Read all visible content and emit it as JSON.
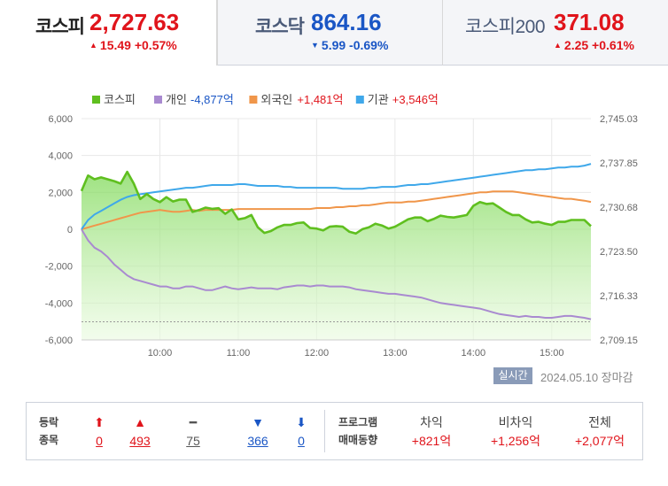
{
  "indices": [
    {
      "name": "코스피",
      "price": "2,727.63",
      "change": "15.49 +0.57%",
      "direction": "up"
    },
    {
      "name": "코스닥",
      "price": "864.16",
      "change": "5.99 -0.69%",
      "direction": "down"
    },
    {
      "name": "코스피200",
      "price": "371.08",
      "change": "2.25 +0.61%",
      "direction": "up"
    }
  ],
  "legend": [
    {
      "label": "코스피",
      "value": "",
      "color": "#5fbf1f"
    },
    {
      "label": "개인",
      "value": "-4,877억",
      "color": "#a98ad0"
    },
    {
      "label": "외국인",
      "value": "+1,481억",
      "color": "#f0964a"
    },
    {
      "label": "기관",
      "value": "+3,546억",
      "color": "#3fa8ea"
    }
  ],
  "status_badge": "실시간",
  "datetime": "2024.05.10 장마감",
  "market_stats": {
    "label_line1": "등락",
    "label_line2": "종목",
    "items": [
      {
        "icon": "⬆",
        "value": "0",
        "color": "#e0141b"
      },
      {
        "icon": "▲",
        "value": "493",
        "color": "#e0141b"
      },
      {
        "icon": "━",
        "value": "75",
        "color": "#555555"
      },
      {
        "icon": "▼",
        "value": "366",
        "color": "#1a56c5"
      },
      {
        "icon": "⬇",
        "value": "0",
        "color": "#1a56c5"
      }
    ]
  },
  "program_trading": {
    "label_line1": "프로그램",
    "label_line2": "매매동향",
    "items": [
      {
        "header": "차익",
        "value": "+821억"
      },
      {
        "header": "비차익",
        "value": "+1,256억"
      },
      {
        "header": "전체",
        "value": "+2,077억"
      }
    ]
  },
  "chart_data": {
    "type": "line",
    "x_ticks": [
      "10:00",
      "11:00",
      "12:00",
      "13:00",
      "14:00",
      "15:00"
    ],
    "x_range": [
      "09:00",
      "15:30"
    ],
    "y_left_ticks": [
      "6,000",
      "4,000",
      "2,000",
      "0",
      "-2,000",
      "-4,000",
      "-6,000"
    ],
    "y_left_range": [
      -6000,
      6000
    ],
    "y_right_ticks": [
      "2,745.03",
      "2,737.85",
      "2,730.68",
      "2,723.50",
      "2,716.33",
      "2,709.15"
    ],
    "y_right_range": [
      2709.15,
      2745.03
    ],
    "x": [
      "09:00",
      "09:05",
      "09:10",
      "09:15",
      "09:20",
      "09:25",
      "09:30",
      "09:35",
      "09:40",
      "09:45",
      "09:50",
      "09:55",
      "10:00",
      "10:05",
      "10:10",
      "10:15",
      "10:20",
      "10:25",
      "10:30",
      "10:35",
      "10:40",
      "10:45",
      "10:50",
      "10:55",
      "11:00",
      "11:05",
      "11:10",
      "11:15",
      "11:20",
      "11:25",
      "11:30",
      "11:35",
      "11:40",
      "11:45",
      "11:50",
      "11:55",
      "12:00",
      "12:05",
      "12:10",
      "12:15",
      "12:20",
      "12:25",
      "12:30",
      "12:35",
      "12:40",
      "12:45",
      "12:50",
      "12:55",
      "13:00",
      "13:05",
      "13:10",
      "13:15",
      "13:20",
      "13:25",
      "13:30",
      "13:35",
      "13:40",
      "13:45",
      "13:50",
      "13:55",
      "14:00",
      "14:05",
      "14:10",
      "14:15",
      "14:20",
      "14:25",
      "14:30",
      "14:35",
      "14:40",
      "14:45",
      "14:50",
      "14:55",
      "15:00",
      "15:05",
      "15:10",
      "15:15",
      "15:20",
      "15:25",
      "15:30"
    ],
    "series": [
      {
        "name": "코스피",
        "axis": "right",
        "values": [
          2733.3,
          2735.8,
          2735.2,
          2735.5,
          2735.2,
          2734.9,
          2734.5,
          2736.4,
          2734.5,
          2732.0,
          2732.8,
          2732.0,
          2731.5,
          2732.3,
          2731.6,
          2731.9,
          2731.9,
          2729.9,
          2730.2,
          2730.6,
          2730.4,
          2730.5,
          2729.6,
          2730.3,
          2728.7,
          2728.9,
          2729.4,
          2727.4,
          2726.5,
          2726.8,
          2727.4,
          2727.8,
          2727.8,
          2728.1,
          2728.2,
          2727.3,
          2727.2,
          2726.9,
          2727.5,
          2727.6,
          2727.5,
          2726.7,
          2726.4,
          2727.1,
          2727.4,
          2728.0,
          2727.7,
          2727.2,
          2727.5,
          2728.1,
          2728.7,
          2729.0,
          2729.0,
          2728.4,
          2728.8,
          2729.3,
          2729.1,
          2729.0,
          2729.2,
          2729.4,
          2730.9,
          2731.5,
          2731.2,
          2731.3,
          2730.6,
          2729.9,
          2729.4,
          2729.4,
          2728.7,
          2728.2,
          2728.3,
          2728.0,
          2727.8,
          2728.3,
          2728.3,
          2728.6,
          2728.6,
          2728.6,
          2727.6
        ]
      },
      {
        "name": "개인",
        "axis": "left",
        "values": [
          0,
          -600,
          -1000,
          -1200,
          -1500,
          -1900,
          -2200,
          -2500,
          -2700,
          -2800,
          -2900,
          -3000,
          -3100,
          -3100,
          -3200,
          -3200,
          -3100,
          -3100,
          -3200,
          -3300,
          -3300,
          -3200,
          -3100,
          -3200,
          -3250,
          -3200,
          -3150,
          -3200,
          -3200,
          -3200,
          -3250,
          -3150,
          -3100,
          -3050,
          -3050,
          -3100,
          -3050,
          -3050,
          -3100,
          -3100,
          -3100,
          -3150,
          -3250,
          -3300,
          -3350,
          -3400,
          -3450,
          -3500,
          -3500,
          -3550,
          -3600,
          -3650,
          -3700,
          -3800,
          -3900,
          -4000,
          -4050,
          -4100,
          -4150,
          -4200,
          -4250,
          -4300,
          -4400,
          -4500,
          -4600,
          -4650,
          -4700,
          -4750,
          -4700,
          -4750,
          -4750,
          -4800,
          -4800,
          -4750,
          -4700,
          -4700,
          -4750,
          -4800,
          -4877
        ]
      },
      {
        "name": "외국인",
        "axis": "left",
        "values": [
          0,
          100,
          200,
          300,
          400,
          500,
          600,
          700,
          800,
          900,
          950,
          1000,
          1050,
          1000,
          950,
          950,
          1000,
          1050,
          1000,
          1050,
          1050,
          1050,
          1050,
          1050,
          1100,
          1100,
          1100,
          1100,
          1100,
          1100,
          1100,
          1100,
          1100,
          1100,
          1100,
          1100,
          1150,
          1150,
          1150,
          1200,
          1200,
          1250,
          1250,
          1300,
          1300,
          1350,
          1400,
          1450,
          1450,
          1450,
          1500,
          1500,
          1550,
          1600,
          1650,
          1700,
          1750,
          1800,
          1850,
          1900,
          1950,
          2000,
          2000,
          2050,
          2050,
          2050,
          2050,
          2000,
          1950,
          1900,
          1850,
          1800,
          1750,
          1700,
          1650,
          1650,
          1600,
          1550,
          1481
        ]
      },
      {
        "name": "기관",
        "axis": "left",
        "values": [
          0,
          500,
          800,
          1000,
          1200,
          1400,
          1600,
          1750,
          1850,
          1900,
          1950,
          2000,
          2050,
          2100,
          2150,
          2200,
          2250,
          2250,
          2300,
          2350,
          2400,
          2400,
          2400,
          2400,
          2450,
          2450,
          2400,
          2350,
          2350,
          2350,
          2350,
          2300,
          2300,
          2250,
          2250,
          2250,
          2250,
          2250,
          2250,
          2250,
          2200,
          2200,
          2200,
          2200,
          2250,
          2250,
          2300,
          2300,
          2300,
          2350,
          2400,
          2400,
          2450,
          2450,
          2500,
          2550,
          2600,
          2650,
          2700,
          2750,
          2800,
          2850,
          2900,
          2950,
          3000,
          3050,
          3100,
          3150,
          3200,
          3200,
          3250,
          3250,
          3300,
          3350,
          3350,
          3400,
          3400,
          3450,
          3546
        ]
      }
    ],
    "reference_line": {
      "axis": "right",
      "value": 2712.1,
      "style": "dotted"
    },
    "grid": true,
    "legend_position": "top-left"
  }
}
